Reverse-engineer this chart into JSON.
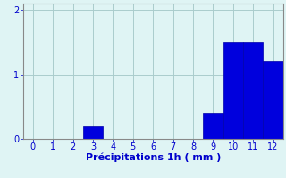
{
  "categories": [
    0,
    1,
    2,
    3,
    4,
    5,
    6,
    7,
    8,
    9,
    10,
    11,
    12
  ],
  "values": [
    0,
    0,
    0,
    0.2,
    0,
    0,
    0,
    0,
    0,
    0.4,
    1.5,
    1.5,
    1.2
  ],
  "bar_color": "#0000dd",
  "bar_edge_color": "#0000aa",
  "background_color": "#dff4f4",
  "grid_color": "#aacccc",
  "xlabel": "Précipitations 1h ( mm )",
  "xlabel_color": "#0000cc",
  "tick_color": "#0000cc",
  "spine_color": "#888888",
  "ylim": [
    0,
    2.1
  ],
  "yticks": [
    0,
    1,
    2
  ],
  "xlim": [
    -0.5,
    12.5
  ],
  "xticks": [
    0,
    1,
    2,
    3,
    4,
    5,
    6,
    7,
    8,
    9,
    10,
    11,
    12
  ],
  "bar_width": 1.0,
  "label_fontsize": 8,
  "tick_fontsize": 7
}
